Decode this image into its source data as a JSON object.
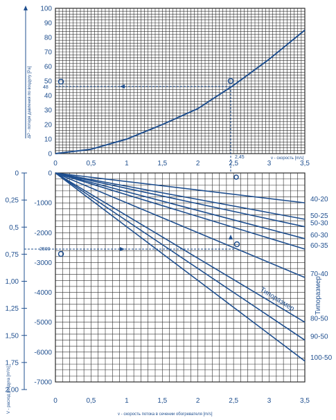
{
  "chart_data": [
    {
      "type": "line",
      "ylabel": "ΔP - потеря давления по воздуху [Pa]",
      "xlabel": "v - скорость [m/s]",
      "xlim": [
        0,
        3.5
      ],
      "ylim": [
        0,
        100
      ],
      "x_ticks": [
        "0",
        "0,5",
        "1",
        "1,5",
        "2",
        "2,5",
        "3",
        "3,5"
      ],
      "y_ticks": [
        "0",
        "10",
        "20",
        "30",
        "40",
        "50",
        "60",
        "70",
        "80",
        "90",
        "100"
      ],
      "grid": true,
      "series": [
        {
          "x": [
            0,
            0.5,
            1,
            1.5,
            2,
            2.5,
            3,
            3.5
          ],
          "y": [
            0,
            3,
            10,
            20,
            31,
            47,
            65,
            85
          ]
        }
      ],
      "annotations": {
        "velocity": "2,45",
        "pressure": "48"
      }
    },
    {
      "type": "line",
      "ylabel": "V - расход воздуха [m³/s]",
      "xlabel": "v - скорость потока в сечении обогревателя [m/s]",
      "xlim": [
        0,
        3.5
      ],
      "ylim": [
        -7000,
        0
      ],
      "x_ticks": [
        "0",
        "0,5",
        "1",
        "1,5",
        "2",
        "2,5",
        "3",
        "3,5"
      ],
      "y_ticks": [
        "0",
        "-1000",
        "-2000",
        "-3000",
        "-4000",
        "-5000",
        "-6000",
        "-7000"
      ],
      "left_ticks": [
        "0",
        "0,25",
        "0,5",
        "0,75",
        "1,00",
        "1,25",
        "1,50",
        "1,75",
        "2,00"
      ],
      "grid": true,
      "size_caption": "Типоразмер",
      "series": [
        {
          "name": "40-20",
          "x": [
            0,
            3.5
          ],
          "y": [
            0,
            -1000
          ]
        },
        {
          "name": "50-25",
          "x": [
            0,
            3.5
          ],
          "y": [
            0,
            -1550
          ]
        },
        {
          "name": "50-30",
          "x": [
            0,
            3.5
          ],
          "y": [
            0,
            -1800
          ]
        },
        {
          "name": "60-30",
          "x": [
            0,
            3.5
          ],
          "y": [
            0,
            -2200
          ]
        },
        {
          "name": "60-35",
          "x": [
            0,
            3.5
          ],
          "y": [
            0,
            -2550
          ]
        },
        {
          "name": "70-40",
          "x": [
            0,
            3.5
          ],
          "y": [
            0,
            -3500
          ]
        },
        {
          "name": "80-50",
          "x": [
            0,
            3.5
          ],
          "y": [
            0,
            -5000
          ]
        },
        {
          "name": "90-50",
          "x": [
            0,
            3.5
          ],
          "y": [
            0,
            -5600
          ]
        },
        {
          "name": "100-50",
          "x": [
            0,
            3.5
          ],
          "y": [
            0,
            -6300
          ]
        }
      ],
      "annotations": {
        "flow": "2500"
      }
    }
  ],
  "colors": {
    "line": "#1f4f8f",
    "grid": "#2a2a2a"
  }
}
